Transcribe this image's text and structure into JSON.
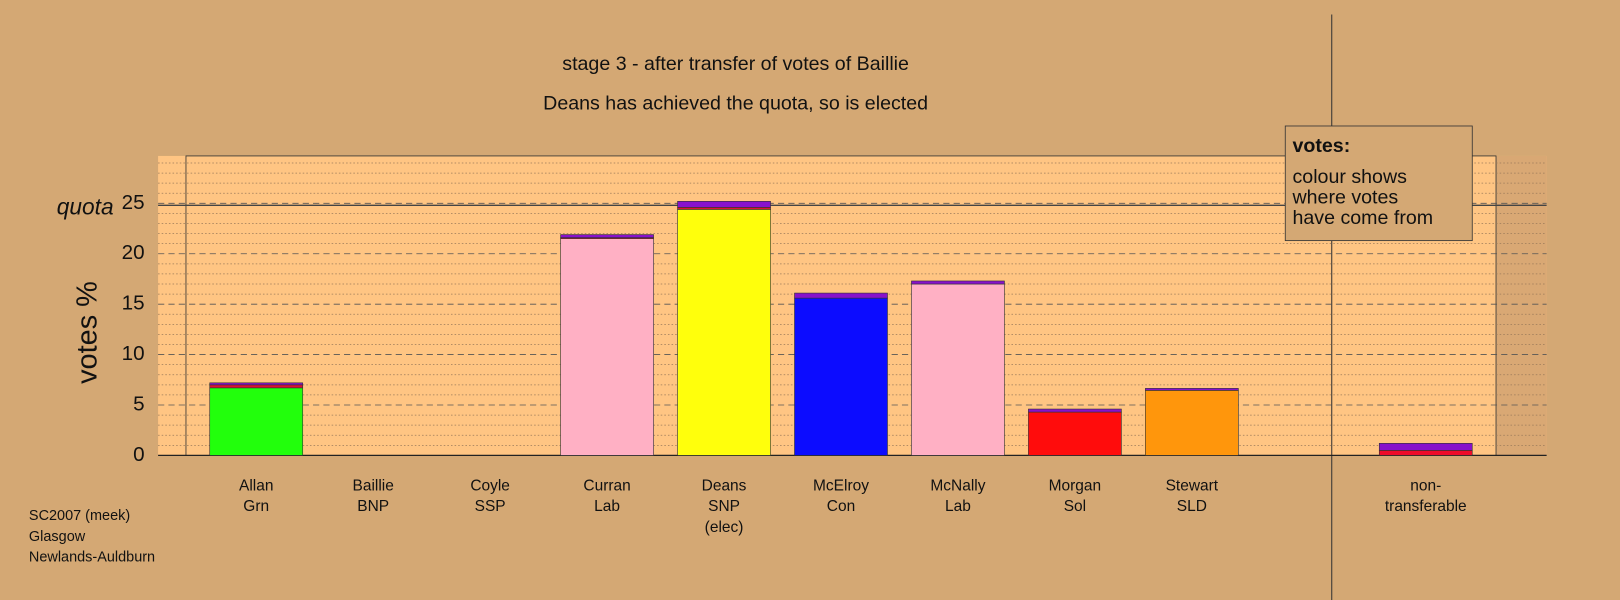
{
  "chart_data": {
    "type": "stacked-bar",
    "title": "stage 3 - after transfer of votes of Baillie",
    "subtitle": "Deans has achieved the quota, so is elected",
    "ylabel": "votes %",
    "quota": {
      "label": "quota",
      "value": 24.8
    },
    "categories": [
      [
        "Allan",
        "Grn"
      ],
      [
        "Baillie",
        "BNP"
      ],
      [
        "Coyle",
        "SSP"
      ],
      [
        "Curran",
        "Lab"
      ],
      [
        "Deans",
        "SNP",
        "(elec)"
      ],
      [
        "McElroy",
        "Con"
      ],
      [
        "McNally",
        "Lab"
      ],
      [
        "Morgan",
        "Sol"
      ],
      [
        "Stewart",
        "SLD"
      ],
      [
        "non-",
        "transferable"
      ]
    ],
    "series": [
      {
        "colors": [
          "#22ff0c",
          "#555555",
          "#cc2222",
          "#ffb0c4",
          "#ffff0c",
          "#0c0cff",
          "#ffb0c4",
          "#ff0c0c",
          "#ff960c",
          "#ee0c2a"
        ],
        "values": [
          6.7,
          0,
          0,
          21.5,
          24.4,
          15.6,
          17.0,
          4.3,
          6.45,
          0.5
        ]
      },
      {
        "color": "#dd1133",
        "values": [
          0.3,
          0,
          0,
          0.1,
          0.2,
          0,
          0,
          0,
          0,
          0
        ]
      },
      {
        "color": "#8811cc",
        "values": [
          0.2,
          0,
          0,
          0.3,
          0.6,
          0.5,
          0.3,
          0.3,
          0.2,
          0.7
        ]
      }
    ],
    "ylim": [
      0,
      29.7
    ],
    "yticks": [
      0,
      5,
      10,
      15,
      20,
      25
    ],
    "minor_yticks": [
      1,
      2,
      3,
      4,
      6,
      7,
      8,
      9,
      11,
      12,
      13,
      14,
      16,
      17,
      18,
      19,
      21,
      22,
      23,
      24,
      26,
      27,
      28,
      29
    ],
    "grid": true,
    "annotation": {
      "heading": "votes:",
      "lines": [
        "colour shows",
        "where votes",
        "have come from"
      ]
    },
    "footer": [
      "SC2007 (meek)",
      "Glasgow",
      "Newlands-Auldburn"
    ]
  }
}
